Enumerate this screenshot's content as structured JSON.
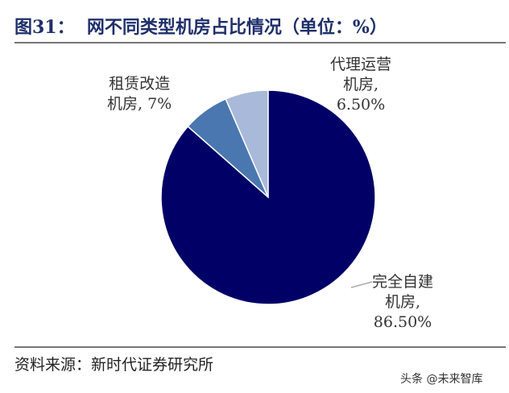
{
  "title": "图31：  网不同类型机房占比情况（单位：%）",
  "source": "资料来源：新时代证券研究所",
  "watermark": "头条 @未来智库",
  "chart_data": {
    "type": "pie",
    "start": "top, clockwise",
    "slices": [
      {
        "label": "完全自建机房, 86.50%",
        "line1": "完全自建",
        "line2": "机房,",
        "line3": "86.50%",
        "value": 86.5,
        "color": "#000066"
      },
      {
        "label": "租赁改造机房, 7%",
        "line1": "租赁改造",
        "line2": "机房, 7%",
        "value": 7,
        "color": "#4a77b0"
      },
      {
        "label": "代理运营机房, 6.50%",
        "line1": "代理运营",
        "line2": "机房,",
        "line3": "6.50%",
        "value": 6.5,
        "color": "#a9b9d9"
      }
    ]
  }
}
